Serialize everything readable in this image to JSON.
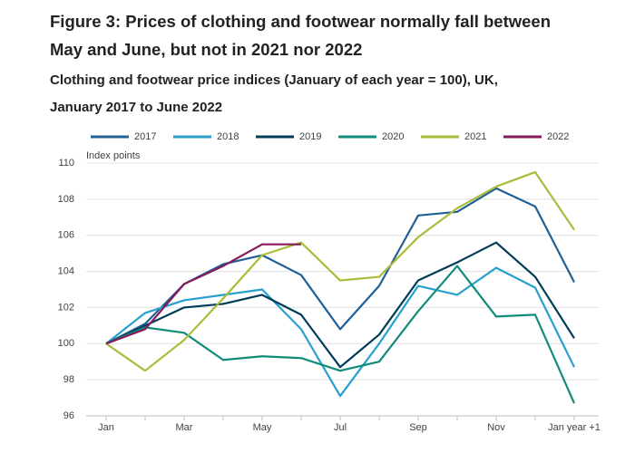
{
  "chart_data": {
    "type": "line",
    "title": "Figure 3: Prices of clothing and footwear normally fall between May and June, but not in 2021 nor 2022",
    "subtitle": "Clothing and footwear price indices (January of each year = 100), UK, January 2017 to June 2022",
    "y_axis_label": "Index points",
    "categories": [
      "Jan",
      null,
      "Mar",
      null,
      "May",
      null,
      "Jul",
      null,
      "Sep",
      null,
      "Nov",
      null,
      "Jan year +1"
    ],
    "series": [
      {
        "name": "2017",
        "color": "#206095",
        "values": [
          100,
          101.1,
          103.3,
          104.4,
          104.9,
          103.8,
          100.8,
          103.2,
          107.1,
          107.3,
          108.6,
          107.6,
          103.4
        ]
      },
      {
        "name": "2018",
        "color": "#27a0cc",
        "values": [
          100,
          101.7,
          102.4,
          102.7,
          103.0,
          100.8,
          97.1,
          100.0,
          103.2,
          102.7,
          104.2,
          103.1,
          98.7
        ]
      },
      {
        "name": "2019",
        "color": "#003c57",
        "values": [
          100,
          101.0,
          102.0,
          102.2,
          102.7,
          101.6,
          98.7,
          100.5,
          103.5,
          104.5,
          105.6,
          103.7,
          100.3
        ]
      },
      {
        "name": "2020",
        "color": "#118c7b",
        "values": [
          100,
          100.9,
          100.6,
          99.1,
          99.3,
          99.2,
          98.5,
          99.0,
          101.8,
          104.3,
          101.5,
          101.6,
          96.7
        ]
      },
      {
        "name": "2021",
        "color": "#a8bd3a",
        "values": [
          100,
          98.5,
          100.2,
          102.5,
          104.9,
          105.6,
          103.5,
          103.7,
          105.9,
          107.5,
          108.7,
          109.5,
          106.3
        ]
      },
      {
        "name": "2022",
        "color": "#871a5b",
        "values": [
          100,
          100.8,
          103.3,
          104.3,
          105.5,
          105.5,
          null,
          null,
          null,
          null,
          null,
          null,
          null
        ]
      }
    ],
    "ylim": [
      96,
      110
    ],
    "yticks": [
      96,
      98,
      100,
      102,
      104,
      106,
      108,
      110
    ],
    "grid": true,
    "legend": "top"
  }
}
